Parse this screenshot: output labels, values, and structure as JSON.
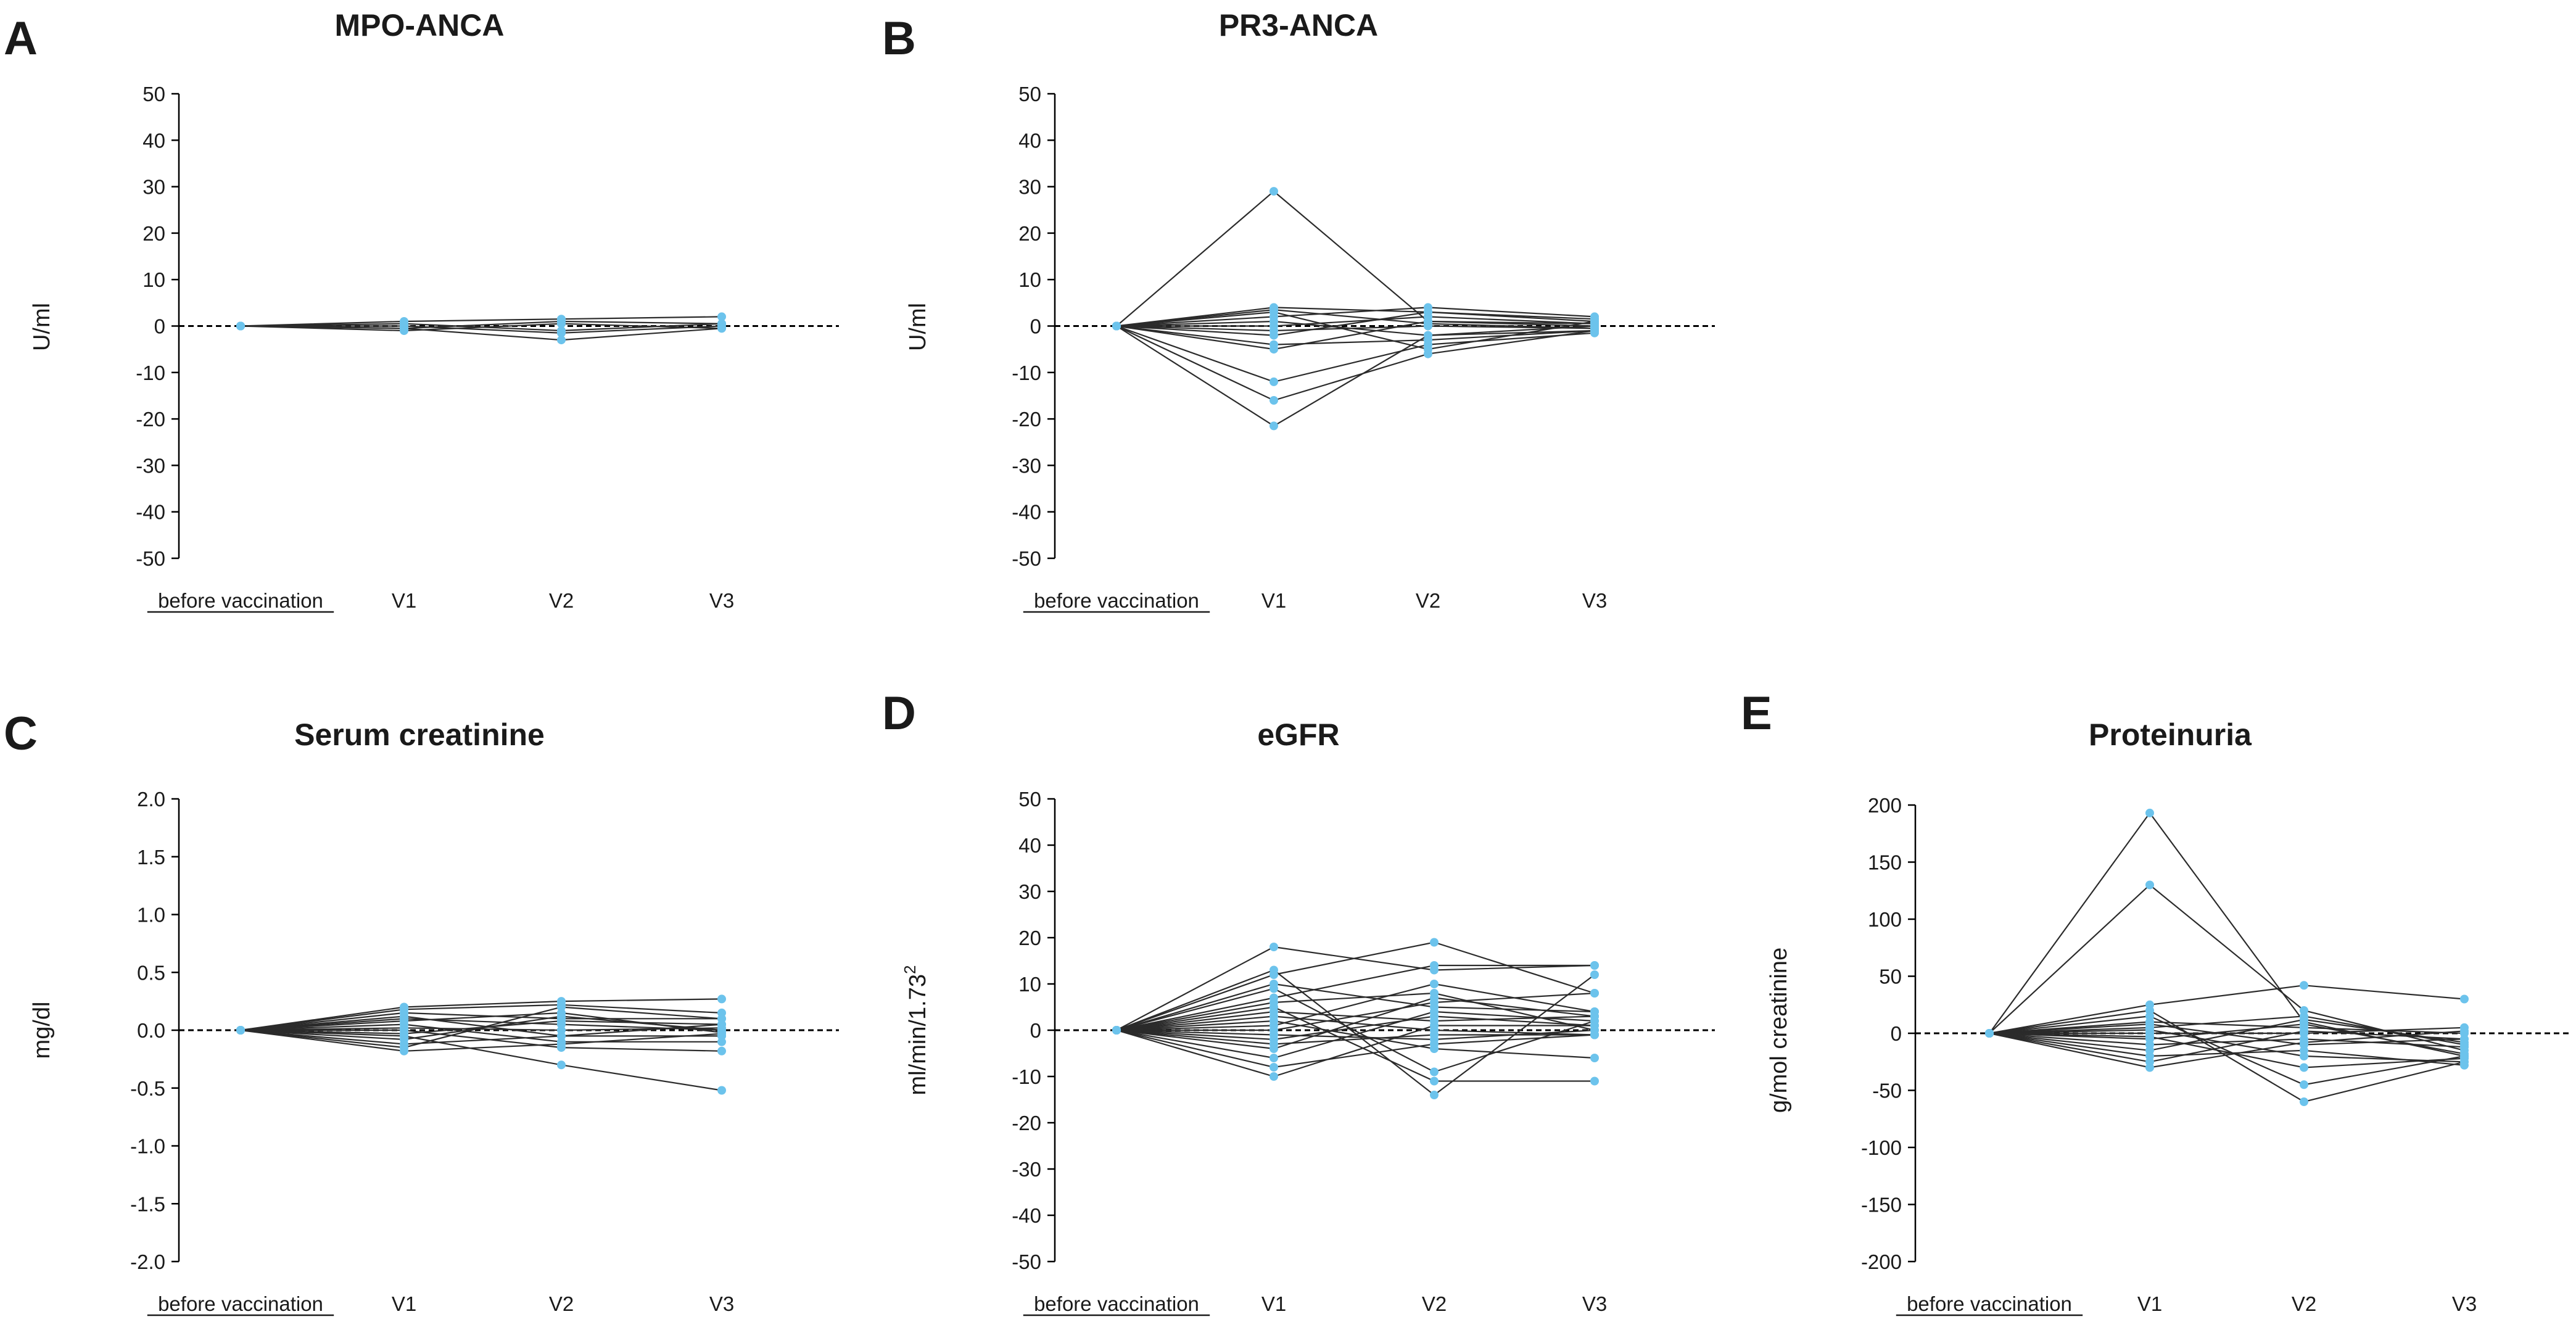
{
  "style": {
    "dot_color": "#6cc3ec",
    "line_color": "#2b2b2b"
  },
  "chart_data": [
    {
      "panel": "A",
      "title": "MPO-ANCA",
      "type": "line",
      "ylabel": "U/ml",
      "categories": [
        "before vaccination",
        "V1",
        "V2",
        "V3"
      ],
      "ylim": [
        -50,
        50
      ],
      "yticks": [
        50,
        40,
        30,
        20,
        10,
        0,
        -10,
        -20,
        -30,
        -40,
        -50
      ],
      "reference_line": 0,
      "series": [
        {
          "name": "1",
          "values": [
            0,
            1.0,
            1.5,
            2.0
          ]
        },
        {
          "name": "2",
          "values": [
            0,
            0.5,
            -1.0,
            0.5
          ]
        },
        {
          "name": "3",
          "values": [
            0,
            -0.5,
            -3.0,
            -0.5
          ]
        },
        {
          "name": "4",
          "values": [
            0,
            -1.0,
            0.5,
            -0.5
          ]
        },
        {
          "name": "5",
          "values": [
            0,
            0.0,
            -1.5,
            0.0
          ]
        },
        {
          "name": "6",
          "values": [
            0,
            -0.5,
            1.0,
            0.5
          ]
        }
      ]
    },
    {
      "panel": "B",
      "title": "PR3-ANCA",
      "type": "line",
      "ylabel": "U/ml",
      "categories": [
        "before vaccination",
        "V1",
        "V2",
        "V3"
      ],
      "ylim": [
        -50,
        50
      ],
      "yticks": [
        50,
        40,
        30,
        20,
        10,
        0,
        -10,
        -20,
        -30,
        -40,
        -50
      ],
      "reference_line": 0,
      "series": [
        {
          "name": "1",
          "values": [
            0,
            29,
            1.0,
            0.5
          ]
        },
        {
          "name": "2",
          "values": [
            0,
            4,
            3.0,
            1.5
          ]
        },
        {
          "name": "3",
          "values": [
            0,
            3,
            -5.0,
            1.0
          ]
        },
        {
          "name": "4",
          "values": [
            0,
            2,
            4.0,
            2.0
          ]
        },
        {
          "name": "5",
          "values": [
            0,
            1,
            -2.0,
            -1.0
          ]
        },
        {
          "name": "6",
          "values": [
            0,
            0,
            2.0,
            0.5
          ]
        },
        {
          "name": "7",
          "values": [
            0,
            -1,
            0.0,
            -0.5
          ]
        },
        {
          "name": "8",
          "values": [
            0,
            -2,
            3.0,
            1.0
          ]
        },
        {
          "name": "9",
          "values": [
            0,
            -4,
            -3.0,
            -1.0
          ]
        },
        {
          "name": "10",
          "values": [
            0,
            -5,
            1.0,
            0.0
          ]
        },
        {
          "name": "11",
          "values": [
            0,
            -12,
            -4.0,
            -1.5
          ]
        },
        {
          "name": "12",
          "values": [
            0,
            -16,
            -6.0,
            -1.0
          ]
        },
        {
          "name": "13",
          "values": [
            0,
            -21.5,
            -2.0,
            0.0
          ]
        },
        {
          "name": "14",
          "values": [
            0,
            3.5,
            0.5,
            -0.5
          ]
        }
      ]
    },
    {
      "panel": "C",
      "title": "Serum creatinine",
      "type": "line",
      "ylabel": "mg/dl",
      "categories": [
        "before vaccination",
        "V1",
        "V2",
        "V3"
      ],
      "ylim": [
        -2.0,
        2.0
      ],
      "yticks": [
        "2.0",
        "1.5",
        "1.0",
        "0.5",
        "0.0",
        "-0.5",
        "-1.0",
        "-1.5",
        "-2.0"
      ],
      "reference_line": 0,
      "series": [
        {
          "name": "1",
          "values": [
            0,
            0.2,
            0.25,
            0.27
          ]
        },
        {
          "name": "2",
          "values": [
            0,
            0.18,
            0.22,
            0.15
          ]
        },
        {
          "name": "3",
          "values": [
            0,
            0.15,
            0.1,
            0.1
          ]
        },
        {
          "name": "4",
          "values": [
            0,
            0.12,
            -0.05,
            0.05
          ]
        },
        {
          "name": "5",
          "values": [
            0,
            0.1,
            0.05,
            0.0
          ]
        },
        {
          "name": "6",
          "values": [
            0,
            0.08,
            0.15,
            -0.02
          ]
        },
        {
          "name": "7",
          "values": [
            0,
            0.05,
            -0.1,
            -0.1
          ]
        },
        {
          "name": "8",
          "values": [
            0,
            0.02,
            0.0,
            0.02
          ]
        },
        {
          "name": "9",
          "values": [
            0,
            0.0,
            -0.15,
            -0.18
          ]
        },
        {
          "name": "10",
          "values": [
            0,
            -0.03,
            0.08,
            0.05
          ]
        },
        {
          "name": "11",
          "values": [
            0,
            -0.05,
            -0.3,
            -0.52
          ]
        },
        {
          "name": "12",
          "values": [
            0,
            -0.08,
            0.12,
            0.0
          ]
        },
        {
          "name": "13",
          "values": [
            0,
            -0.12,
            -0.05,
            -0.05
          ]
        },
        {
          "name": "14",
          "values": [
            0,
            -0.15,
            0.2,
            0.1
          ]
        },
        {
          "name": "15",
          "values": [
            0,
            -0.18,
            -0.12,
            -0.03
          ]
        }
      ]
    },
    {
      "panel": "D",
      "title": "eGFR",
      "type": "line",
      "ylabel": "ml/min/1.73",
      "ylabel_superscript": "2",
      "categories": [
        "before vaccination",
        "V1",
        "V2",
        "V3"
      ],
      "ylim": [
        -50,
        50
      ],
      "yticks": [
        50,
        40,
        30,
        20,
        10,
        0,
        -10,
        -20,
        -30,
        -40,
        -50
      ],
      "reference_line": 0,
      "series": [
        {
          "name": "1",
          "values": [
            0,
            18,
            13,
            14
          ]
        },
        {
          "name": "2",
          "values": [
            0,
            13,
            -14,
            12
          ]
        },
        {
          "name": "3",
          "values": [
            0,
            12,
            19,
            8
          ]
        },
        {
          "name": "4",
          "values": [
            0,
            10,
            5,
            4
          ]
        },
        {
          "name": "5",
          "values": [
            0,
            9,
            -9,
            2
          ]
        },
        {
          "name": "6",
          "values": [
            0,
            7,
            14,
            14
          ]
        },
        {
          "name": "7",
          "values": [
            0,
            6,
            8,
            0
          ]
        },
        {
          "name": "8",
          "values": [
            0,
            5,
            -11,
            -11
          ]
        },
        {
          "name": "9",
          "values": [
            0,
            4,
            2,
            3
          ]
        },
        {
          "name": "10",
          "values": [
            0,
            3,
            0,
            -1
          ]
        },
        {
          "name": "11",
          "values": [
            0,
            2,
            -4,
            -6
          ]
        },
        {
          "name": "12",
          "values": [
            0,
            1,
            10,
            4
          ]
        },
        {
          "name": "13",
          "values": [
            0,
            0,
            6,
            8
          ]
        },
        {
          "name": "14",
          "values": [
            0,
            -1,
            -2,
            0
          ]
        },
        {
          "name": "15",
          "values": [
            0,
            -2,
            3,
            1
          ]
        },
        {
          "name": "16",
          "values": [
            0,
            -3,
            -1,
            -1
          ]
        },
        {
          "name": "17",
          "values": [
            0,
            -4,
            7,
            3
          ]
        },
        {
          "name": "18",
          "values": [
            0,
            -6,
            4,
            2
          ]
        },
        {
          "name": "19",
          "values": [
            0,
            -8,
            -3,
            -1
          ]
        },
        {
          "name": "20",
          "values": [
            0,
            -10,
            1,
            1
          ]
        }
      ]
    },
    {
      "panel": "E",
      "title": "Proteinuria",
      "type": "line",
      "ylabel": "g/mol creatinine",
      "categories": [
        "before vaccination",
        "V1",
        "V2",
        "V3"
      ],
      "ylim": [
        -200,
        200
      ],
      "yticks": [
        200,
        150,
        100,
        50,
        0,
        -50,
        -100,
        -150,
        -200
      ],
      "reference_line": 0,
      "series": [
        {
          "name": "1",
          "values": [
            0,
            193,
            10,
            -20
          ]
        },
        {
          "name": "2",
          "values": [
            0,
            130,
            20,
            -15
          ]
        },
        {
          "name": "3",
          "values": [
            0,
            25,
            42,
            30
          ]
        },
        {
          "name": "4",
          "values": [
            0,
            20,
            -60,
            -25
          ]
        },
        {
          "name": "5",
          "values": [
            0,
            15,
            -45,
            -20
          ]
        },
        {
          "name": "6",
          "values": [
            0,
            10,
            5,
            0
          ]
        },
        {
          "name": "7",
          "values": [
            0,
            8,
            -10,
            -5
          ]
        },
        {
          "name": "8",
          "values": [
            0,
            5,
            15,
            -10
          ]
        },
        {
          "name": "9",
          "values": [
            0,
            3,
            -20,
            -25
          ]
        },
        {
          "name": "10",
          "values": [
            0,
            0,
            0,
            5
          ]
        },
        {
          "name": "11",
          "values": [
            0,
            -3,
            -30,
            -22
          ]
        },
        {
          "name": "12",
          "values": [
            0,
            -5,
            8,
            -18
          ]
        },
        {
          "name": "13",
          "values": [
            0,
            -10,
            -5,
            -12
          ]
        },
        {
          "name": "14",
          "values": [
            0,
            -15,
            12,
            -8
          ]
        },
        {
          "name": "15",
          "values": [
            0,
            -20,
            -15,
            -28
          ]
        },
        {
          "name": "16",
          "values": [
            0,
            -25,
            2,
            -5
          ]
        },
        {
          "name": "17",
          "values": [
            0,
            -30,
            -8,
            2
          ]
        }
      ]
    }
  ]
}
